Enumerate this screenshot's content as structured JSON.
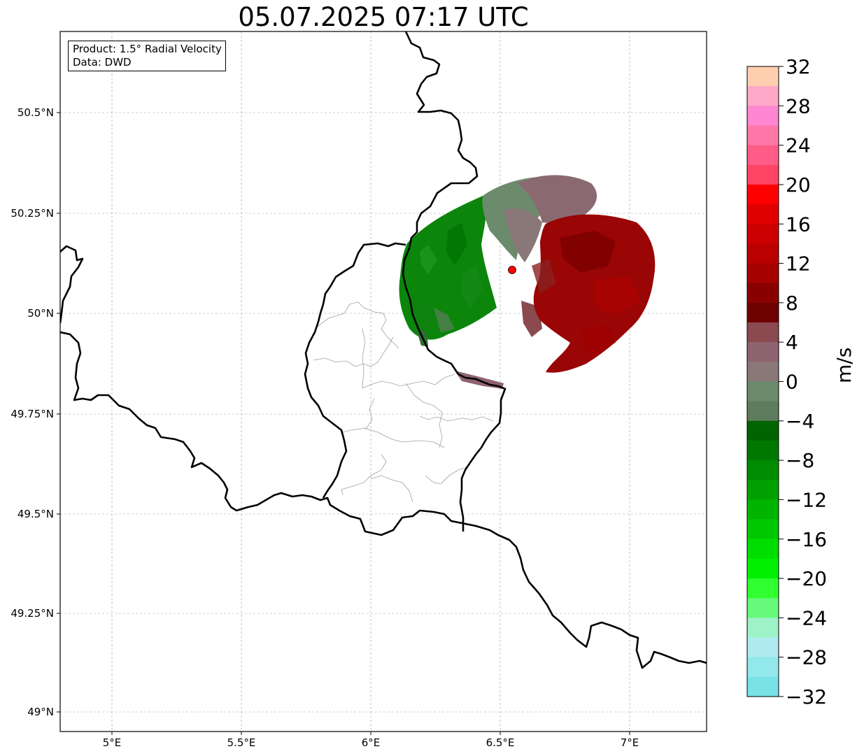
{
  "title": "05.07.2025 07:17 UTC",
  "info": {
    "product": "Product: 1.5° Radial Velocity",
    "source": "Data: DWD"
  },
  "axes": {
    "x_ticks": [
      "5°E",
      "5.5°E",
      "6°E",
      "6.5°E",
      "7°E"
    ],
    "y_ticks": [
      "50.5°N",
      "50.25°N",
      "50°N",
      "49.75°N",
      "49.5°N",
      "49.25°N",
      "49°N"
    ]
  },
  "radar_site": {
    "label": "radar-site",
    "lon": 6.55,
    "lat": 50.11,
    "color": "#ff0000"
  },
  "colorbar": {
    "unit": "m/s",
    "min": -32,
    "max": 32,
    "tick_labels": [
      "32",
      "28",
      "24",
      "20",
      "16",
      "12",
      "8",
      "4",
      "0",
      "−4",
      "−8",
      "−12",
      "−16",
      "−20",
      "−24",
      "−28",
      "−32"
    ],
    "colors_top_to_bottom": [
      "#ffcfb0",
      "#ffa8c8",
      "#ff86d0",
      "#ff78a8",
      "#ff5c88",
      "#ff4466",
      "#ff0000",
      "#e00000",
      "#cc0000",
      "#bb0000",
      "#a60000",
      "#8a0000",
      "#6e0000",
      "#8a4a50",
      "#8e6470",
      "#8a7878",
      "#6c8a6c",
      "#5c7c5c",
      "#006400",
      "#007800",
      "#008c00",
      "#00a000",
      "#00b400",
      "#00c800",
      "#00de00",
      "#00f000",
      "#30ff30",
      "#66f97a",
      "#9ef2c8",
      "#aeeaee",
      "#92e8ea",
      "#78e2e6"
    ]
  },
  "chart_data": {
    "type": "map",
    "projection": "plate carree",
    "lon_range": [
      4.8,
      7.3
    ],
    "lat_range": [
      48.95,
      50.7
    ],
    "gridlines": true,
    "field": "radial velocity (m/s)",
    "color_range": [
      -32,
      32
    ],
    "radar_echo": {
      "center": [
        6.55,
        50.11
      ],
      "negative_sector": "west (green, approx. -4 to -10 m/s)",
      "positive_sector": "east (dark red, approx. 8 to 12 m/s)"
    }
  }
}
